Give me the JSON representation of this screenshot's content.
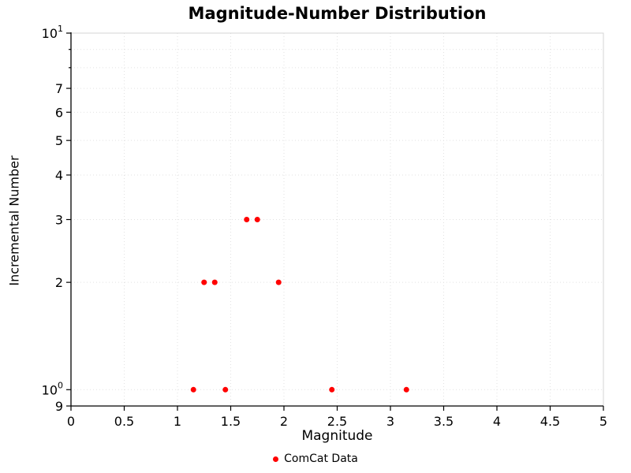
{
  "chart_data": {
    "type": "scatter",
    "title": "Magnitude-Number Distribution",
    "xlabel": "Magnitude",
    "ylabel": "Incremental Number",
    "legend": "ComCat Data",
    "marker_color": "#ff0000",
    "xlim": [
      0,
      5
    ],
    "ylim": [
      0.9,
      10
    ],
    "yscale": "log",
    "grid": true,
    "x_ticks": [
      {
        "v": 0,
        "label": "0"
      },
      {
        "v": 0.5,
        "label": "0.5"
      },
      {
        "v": 1,
        "label": "1"
      },
      {
        "v": 1.5,
        "label": "1.5"
      },
      {
        "v": 2,
        "label": "2"
      },
      {
        "v": 2.5,
        "label": "2.5"
      },
      {
        "v": 3,
        "label": "3"
      },
      {
        "v": 3.5,
        "label": "3.5"
      },
      {
        "v": 4,
        "label": "4"
      },
      {
        "v": 4.5,
        "label": "4.5"
      },
      {
        "v": 5,
        "label": "5"
      }
    ],
    "y_ticks": [
      {
        "v": 10,
        "label": "10",
        "exp": "1"
      },
      {
        "v": 9
      },
      {
        "v": 8
      },
      {
        "v": 7,
        "label": "7"
      },
      {
        "v": 6,
        "label": "6"
      },
      {
        "v": 5,
        "label": "5"
      },
      {
        "v": 4,
        "label": "4"
      },
      {
        "v": 3,
        "label": "3"
      },
      {
        "v": 2,
        "label": "2"
      },
      {
        "v": 1,
        "label": "10",
        "exp": "0"
      },
      {
        "v": 0.9,
        "label": "9"
      }
    ],
    "points": [
      {
        "x": 1.15,
        "y": 1
      },
      {
        "x": 1.25,
        "y": 2
      },
      {
        "x": 1.35,
        "y": 2
      },
      {
        "x": 1.45,
        "y": 1
      },
      {
        "x": 1.65,
        "y": 3
      },
      {
        "x": 1.75,
        "y": 3
      },
      {
        "x": 1.95,
        "y": 2
      },
      {
        "x": 2.45,
        "y": 1
      },
      {
        "x": 3.15,
        "y": 1
      }
    ]
  }
}
